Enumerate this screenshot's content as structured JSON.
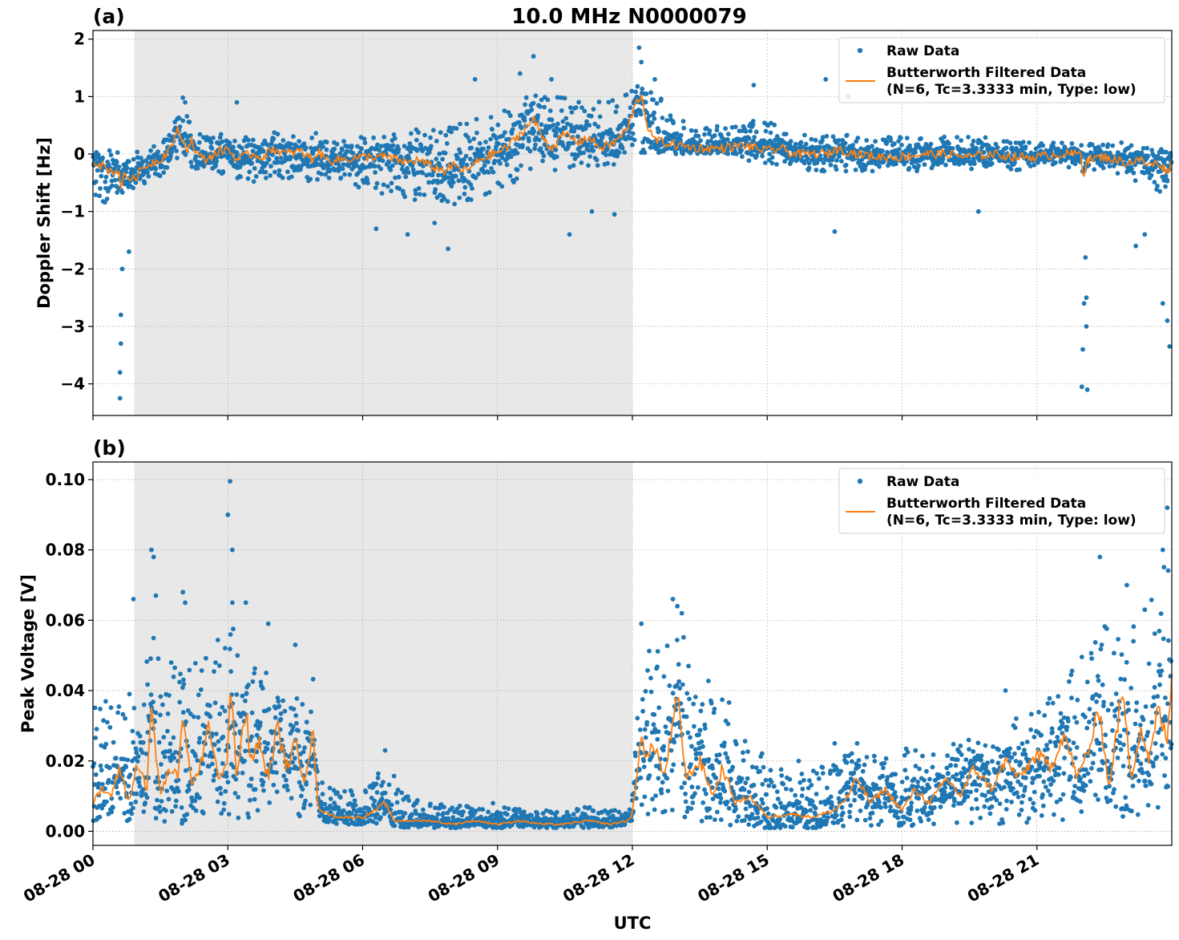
{
  "figure": {
    "title": "10.0 MHz N0000079",
    "xlabel": "UTC"
  },
  "colors": {
    "raw": "#1f77b4",
    "filtered": "#ff7f0e",
    "shade": "#e8e8e8",
    "grid": "#b0b0b0"
  },
  "chart_data": [
    {
      "type": "scatter",
      "panel_label": "(a)",
      "ylabel": "Doppler Shift [Hz]",
      "xlim_hours": [
        0,
        24
      ],
      "ylim": [
        -4.55,
        2.15
      ],
      "yticks": [
        2,
        1,
        0,
        -1,
        -2,
        -3,
        -4
      ],
      "ytick_labels": [
        "2",
        "1",
        "0",
        "−1",
        "−2",
        "−3",
        "−4"
      ],
      "xticks_hours": [
        0,
        3,
        6,
        9,
        12,
        15,
        18,
        21
      ],
      "shaded_region_hours": [
        0.92,
        12.0
      ],
      "grid": true,
      "legend": {
        "placement": "upper-right",
        "raw_label": "Raw Data",
        "filtered_label_1": "Butterworth Filtered Data",
        "filtered_label_2": "(N=6, Tc=3.3333 min, Type: low)"
      },
      "series": [
        {
          "name": "Raw Data",
          "kind": "points",
          "band_hours": [
            0,
            0.5,
            1,
            1.5,
            2,
            2.5,
            3,
            3.5,
            4,
            4.5,
            5,
            5.5,
            6,
            6.5,
            7,
            7.5,
            8,
            8.5,
            9,
            9.5,
            10,
            10.5,
            11,
            11.5,
            12,
            12.5,
            13,
            13.5,
            14,
            14.5,
            15,
            15.5,
            16,
            16.5,
            17,
            17.5,
            18,
            18.5,
            19,
            19.5,
            20,
            20.5,
            21,
            21.5,
            22,
            22.5,
            23,
            23.5,
            24
          ],
          "band_low": [
            -0.8,
            -0.9,
            -0.6,
            -0.4,
            -0.2,
            -0.3,
            -0.4,
            -0.5,
            -0.4,
            -0.5,
            -0.5,
            -0.6,
            -0.6,
            -0.7,
            -0.8,
            -0.8,
            -0.9,
            -0.8,
            -0.6,
            -0.5,
            -0.4,
            -0.3,
            -0.3,
            -0.2,
            -0.1,
            0.0,
            0.0,
            0.0,
            0.0,
            -0.1,
            -0.2,
            -0.2,
            -0.3,
            -0.3,
            -0.3,
            -0.3,
            -0.3,
            -0.3,
            -0.2,
            -0.3,
            -0.2,
            -0.3,
            -0.2,
            -0.2,
            -0.3,
            -0.3,
            -0.4,
            -0.6,
            -0.8
          ],
          "band_high": [
            0.1,
            0.05,
            0.05,
            0.2,
            0.8,
            0.3,
            0.4,
            0.3,
            0.4,
            0.3,
            0.4,
            0.3,
            0.3,
            0.3,
            0.4,
            0.5,
            0.5,
            0.6,
            0.7,
            1.0,
            1.1,
            1.0,
            0.9,
            1.0,
            1.2,
            1.1,
            0.6,
            0.5,
            0.5,
            0.6,
            0.6,
            0.4,
            0.3,
            0.4,
            0.3,
            0.3,
            0.3,
            0.3,
            0.3,
            0.3,
            0.3,
            0.3,
            0.2,
            0.2,
            0.2,
            0.2,
            0.2,
            0.1,
            0.1
          ],
          "outliers_hours": [
            0.6,
            0.6,
            0.62,
            0.62,
            0.65,
            0.8,
            2.0,
            2.05,
            3.2,
            6.3,
            7.0,
            7.6,
            7.9,
            8.5,
            9.5,
            9.8,
            10.2,
            10.6,
            11.1,
            11.6,
            12.15,
            12.2,
            12.5,
            14.7,
            16.3,
            16.5,
            16.8,
            19.7,
            22.0,
            22.0,
            22.02,
            22.05,
            22.08,
            22.1,
            22.1,
            22.12,
            23.2,
            23.4,
            23.8,
            23.9,
            23.95
          ],
          "outliers_values": [
            -4.25,
            -3.8,
            -3.3,
            -2.8,
            -2.0,
            -1.7,
            0.98,
            0.9,
            0.9,
            -1.3,
            -1.4,
            -1.2,
            -1.65,
            1.3,
            1.4,
            1.7,
            1.3,
            -1.4,
            -1.0,
            -1.05,
            1.85,
            1.6,
            1.3,
            1.2,
            1.3,
            -1.35,
            1.0,
            -1.0,
            1.2,
            -4.05,
            -3.4,
            -2.6,
            -1.8,
            -3.0,
            -2.5,
            -4.1,
            -1.6,
            -1.4,
            -2.6,
            -2.9,
            -3.35
          ]
        },
        {
          "name": "Butterworth Filtered Data",
          "kind": "line",
          "x_hours": [
            0,
            0.2,
            0.4,
            0.6,
            0.62,
            0.7,
            0.9,
            1.1,
            1.3,
            1.5,
            1.7,
            1.85,
            1.9,
            2.0,
            2.1,
            2.2,
            2.3,
            2.5,
            2.7,
            3.0,
            3.2,
            3.5,
            3.8,
            4.0,
            4.3,
            4.6,
            4.9,
            5.0,
            5.2,
            5.5,
            6.0,
            6.5,
            7.0,
            7.2,
            7.5,
            7.8,
            8.0,
            8.3,
            8.6,
            8.9,
            9.2,
            9.5,
            9.8,
            10.0,
            10.2,
            10.5,
            10.8,
            11.0,
            11.3,
            11.6,
            11.9,
            12.0,
            12.1,
            12.2,
            12.3,
            12.4,
            12.5,
            12.7,
            13.0,
            13.5,
            14.0,
            14.5,
            15.0,
            15.3,
            15.6,
            16.0,
            16.4,
            16.5,
            17.0,
            17.5,
            18.0,
            18.5,
            19.0,
            19.5,
            20.0,
            20.5,
            21.0,
            21.5,
            21.9,
            22.0,
            22.02,
            22.1,
            22.5,
            23.0,
            23.3,
            23.5,
            23.7,
            23.9,
            24.0
          ],
          "y_values": [
            -0.1,
            -0.2,
            -0.3,
            -0.3,
            -0.6,
            -0.35,
            -0.45,
            -0.25,
            -0.15,
            -0.1,
            0.1,
            0.3,
            0.45,
            0.2,
            0.1,
            0.25,
            0.0,
            -0.1,
            0.0,
            0.1,
            -0.1,
            0.0,
            -0.05,
            0.1,
            0.0,
            0.05,
            -0.1,
            0.05,
            -0.1,
            -0.1,
            -0.05,
            -0.05,
            -0.15,
            -0.1,
            -0.2,
            -0.3,
            -0.2,
            -0.3,
            -0.1,
            0.0,
            0.1,
            0.35,
            0.6,
            0.3,
            0.1,
            0.35,
            0.2,
            0.3,
            0.1,
            0.2,
            0.45,
            0.7,
            0.9,
            1.05,
            0.6,
            0.35,
            0.25,
            0.2,
            0.15,
            0.1,
            0.1,
            0.15,
            0.05,
            0.1,
            0.0,
            0.0,
            0.0,
            0.1,
            0.0,
            -0.05,
            -0.05,
            0.0,
            0.0,
            -0.05,
            0.0,
            -0.05,
            -0.05,
            0.0,
            0.0,
            0.05,
            -0.5,
            -0.1,
            -0.05,
            -0.15,
            -0.1,
            -0.2,
            -0.15,
            -0.3,
            -0.15
          ]
        }
      ]
    },
    {
      "type": "scatter",
      "panel_label": "(b)",
      "ylabel": "Peak Voltage [V]",
      "xlim_hours": [
        0,
        24
      ],
      "ylim": [
        -0.004,
        0.105
      ],
      "yticks": [
        0.1,
        0.08,
        0.06,
        0.04,
        0.02,
        0.0
      ],
      "ytick_labels": [
        "0.10",
        "0.08",
        "0.06",
        "0.04",
        "0.02",
        "0.00"
      ],
      "xticks_hours": [
        0,
        3,
        6,
        9,
        12,
        15,
        18,
        21
      ],
      "xtick_labels": [
        "08-28 00",
        "08-28 03",
        "08-28 06",
        "08-28 09",
        "08-28 12",
        "08-28 15",
        "08-28 18",
        "08-28 21"
      ],
      "shaded_region_hours": [
        0.92,
        12.0
      ],
      "grid": true,
      "legend": {
        "placement": "upper-right",
        "raw_label": "Raw Data",
        "filtered_label_1": "Butterworth Filtered Data",
        "filtered_label_2": "(N=6, Tc=3.3333 min, Type: low)"
      },
      "series": [
        {
          "name": "Raw Data",
          "kind": "points",
          "band_hours": [
            0,
            0.5,
            1,
            1.5,
            2,
            2.5,
            3,
            3.5,
            4,
            4.5,
            4.9,
            5.0,
            5.5,
            6,
            6.5,
            7,
            7.5,
            8,
            8.5,
            9,
            9.5,
            10,
            10.5,
            11,
            11.5,
            11.9,
            12.0,
            12.2,
            12.5,
            13,
            13.5,
            14,
            14.5,
            15,
            15.5,
            16,
            16.5,
            17,
            17.5,
            18,
            18.5,
            19,
            19.5,
            20,
            20.5,
            21,
            21.5,
            22,
            22.5,
            23,
            23.5,
            24
          ],
          "band_low": [
            0.003,
            0.003,
            0.003,
            0.003,
            0.002,
            0.003,
            0.003,
            0.003,
            0.003,
            0.004,
            0.004,
            0.003,
            0.002,
            0.002,
            0.002,
            0.001,
            0.001,
            0.001,
            0.001,
            0.001,
            0.001,
            0.001,
            0.001,
            0.001,
            0.001,
            0.001,
            0.002,
            0.004,
            0.004,
            0.004,
            0.003,
            0.002,
            0.001,
            0.001,
            0.001,
            0.001,
            0.001,
            0.001,
            0.001,
            0.001,
            0.001,
            0.001,
            0.002,
            0.002,
            0.002,
            0.002,
            0.003,
            0.003,
            0.004,
            0.004,
            0.004,
            0.004
          ],
          "band_high": [
            0.035,
            0.04,
            0.045,
            0.06,
            0.05,
            0.05,
            0.06,
            0.055,
            0.045,
            0.045,
            0.045,
            0.015,
            0.012,
            0.012,
            0.02,
            0.01,
            0.008,
            0.008,
            0.007,
            0.007,
            0.007,
            0.006,
            0.006,
            0.007,
            0.006,
            0.006,
            0.01,
            0.055,
            0.05,
            0.06,
            0.045,
            0.04,
            0.03,
            0.02,
            0.018,
            0.018,
            0.02,
            0.025,
            0.022,
            0.024,
            0.025,
            0.028,
            0.026,
            0.028,
            0.032,
            0.035,
            0.04,
            0.05,
            0.06,
            0.06,
            0.07,
            0.08
          ],
          "outliers_hours": [
            0.9,
            1.3,
            1.35,
            1.4,
            2.0,
            2.05,
            3.0,
            3.05,
            3.1,
            3.1,
            3.4,
            3.9,
            4.5,
            6.5,
            8.9,
            12.2,
            12.9,
            13.0,
            13.1,
            15.7,
            16.5,
            17.0,
            18.3,
            20.3,
            22.4,
            23.0,
            23.4,
            23.8,
            23.9
          ],
          "outliers_values": [
            0.066,
            0.08,
            0.078,
            0.067,
            0.068,
            0.065,
            0.09,
            0.0995,
            0.08,
            0.065,
            0.065,
            0.059,
            0.053,
            0.023,
            0.008,
            0.059,
            0.066,
            0.064,
            0.062,
            0.02,
            0.025,
            0.025,
            0.023,
            0.04,
            0.078,
            0.07,
            0.063,
            0.08,
            0.092
          ]
        },
        {
          "name": "Butterworth Filtered Data",
          "kind": "line",
          "x_hours": [
            0,
            0.2,
            0.4,
            0.6,
            0.8,
            1.0,
            1.2,
            1.3,
            1.5,
            1.7,
            1.9,
            2.0,
            2.2,
            2.4,
            2.6,
            2.8,
            3.0,
            3.05,
            3.2,
            3.4,
            3.5,
            3.7,
            3.9,
            4.1,
            4.3,
            4.5,
            4.7,
            4.9,
            5.0,
            5.2,
            5.5,
            6.0,
            6.3,
            6.5,
            6.7,
            7.0,
            7.5,
            8.0,
            8.5,
            9.0,
            9.5,
            10.0,
            10.5,
            11.0,
            11.5,
            11.9,
            12.0,
            12.1,
            12.2,
            12.3,
            12.5,
            12.7,
            12.9,
            13.0,
            13.2,
            13.5,
            13.8,
            14.0,
            14.3,
            14.6,
            15.0,
            15.5,
            16.0,
            16.5,
            16.8,
            17.0,
            17.3,
            17.6,
            18.0,
            18.3,
            18.6,
            19.0,
            19.3,
            19.6,
            20.0,
            20.3,
            20.6,
            21.0,
            21.3,
            21.6,
            21.9,
            22.2,
            22.4,
            22.6,
            22.9,
            23.1,
            23.3,
            23.5,
            23.7,
            23.9,
            24.0
          ],
          "y_values": [
            0.008,
            0.012,
            0.01,
            0.018,
            0.008,
            0.02,
            0.012,
            0.035,
            0.01,
            0.018,
            0.015,
            0.035,
            0.012,
            0.02,
            0.03,
            0.015,
            0.02,
            0.043,
            0.015,
            0.035,
            0.02,
            0.025,
            0.015,
            0.03,
            0.018,
            0.025,
            0.015,
            0.028,
            0.007,
            0.005,
            0.004,
            0.004,
            0.006,
            0.008,
            0.003,
            0.003,
            0.003,
            0.002,
            0.003,
            0.002,
            0.003,
            0.002,
            0.002,
            0.003,
            0.002,
            0.003,
            0.005,
            0.015,
            0.03,
            0.02,
            0.025,
            0.015,
            0.03,
            0.038,
            0.015,
            0.02,
            0.01,
            0.018,
            0.008,
            0.01,
            0.004,
            0.005,
            0.004,
            0.006,
            0.01,
            0.015,
            0.008,
            0.012,
            0.006,
            0.012,
            0.008,
            0.015,
            0.01,
            0.018,
            0.012,
            0.02,
            0.015,
            0.022,
            0.018,
            0.028,
            0.015,
            0.025,
            0.035,
            0.012,
            0.04,
            0.015,
            0.03,
            0.02,
            0.035,
            0.025,
            0.045
          ]
        }
      ]
    }
  ]
}
